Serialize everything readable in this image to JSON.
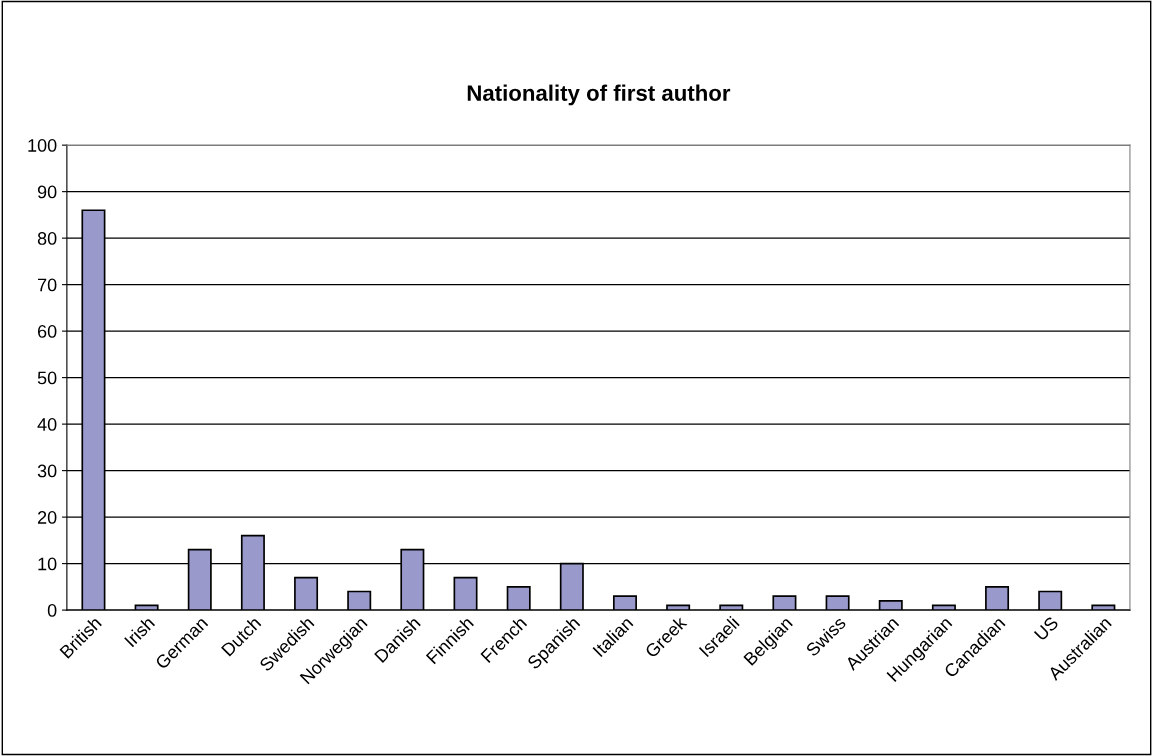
{
  "chart_data": {
    "type": "bar",
    "title": "Nationality of first author",
    "categories": [
      "British",
      "Irish",
      "German",
      "Dutch",
      "Swedish",
      "Norwegian",
      "Danish",
      "Finnish",
      "French",
      "Spanish",
      "Italian",
      "Greek",
      "Israeli",
      "Belgian",
      "Swiss",
      "Austrian",
      "Hungarian",
      "Canadian",
      "US",
      "Australian"
    ],
    "values": [
      86,
      1,
      13,
      16,
      7,
      4,
      13,
      7,
      5,
      10,
      3,
      1,
      1,
      3,
      3,
      2,
      1,
      5,
      4,
      1
    ],
    "color": "#9999cc",
    "ylim": [
      0,
      100
    ],
    "yticks": [
      0,
      10,
      20,
      30,
      40,
      50,
      60,
      70,
      80,
      90,
      100
    ],
    "grid": "y"
  }
}
